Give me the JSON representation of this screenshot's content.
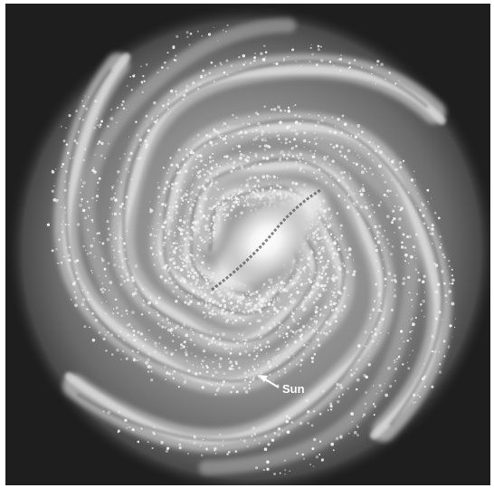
{
  "image": {
    "subject": "spiral-galaxy",
    "colors": {
      "background": "#1e1e1e",
      "halo": "#6e6e6e",
      "disk": "#8a8a8a",
      "arm": "#cfcfcf",
      "dust": "#4a4a4a",
      "core": "#ffffff"
    }
  },
  "annotation": {
    "label": "Sun",
    "icon": "arrow-icon"
  }
}
